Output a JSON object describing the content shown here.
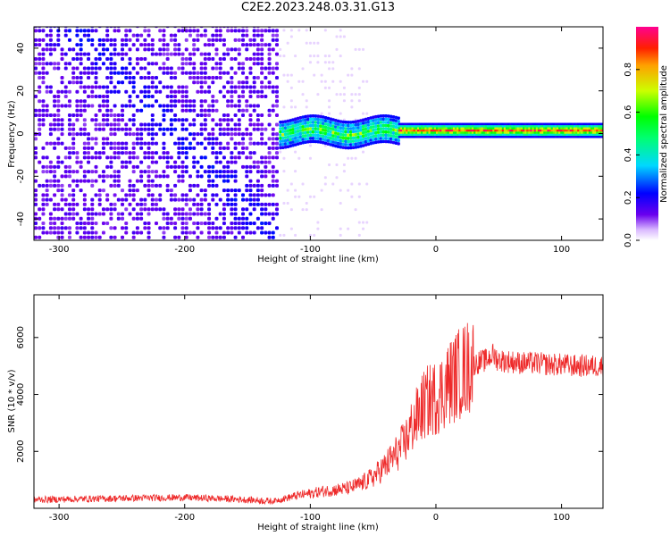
{
  "title": "C2E2.2023.248.03.31.G13",
  "colors": {
    "snr_line": "#ee2a2a",
    "frame": "#000000",
    "spectrogram_low": "#6a00ee"
  },
  "chart_data": [
    {
      "type": "heatmap",
      "title": "",
      "xlabel": "Height of straight line (km)",
      "ylabel": "Frequency (Hz)",
      "xlim": [
        -320,
        133
      ],
      "ylim": [
        -50,
        50
      ],
      "xticks": [
        -300,
        -200,
        -100,
        0,
        100
      ],
      "yticks": [
        -40,
        -20,
        0,
        20,
        40
      ],
      "grid": false,
      "colormap": "rainbow",
      "colorbar": {
        "label": "Normalized spectral amplitude",
        "range": [
          0,
          1
        ],
        "ticks": [
          0.0,
          0.2,
          0.4,
          0.6,
          0.8
        ]
      },
      "bands": [
        {
          "x": [
            -320,
            -125
          ],
          "freq_range": [
            -50,
            50
          ],
          "amplitude": 0.1
        },
        {
          "x": [
            -125,
            -30
          ],
          "freq_center": 0,
          "freq_halfwidth": 6,
          "amplitude": 0.45
        },
        {
          "x": [
            -30,
            133
          ],
          "freq_center": 1,
          "freq_halfwidth": 3,
          "amplitude": 0.8
        }
      ]
    },
    {
      "type": "line",
      "title": "",
      "xlabel": "Height of straight line (km)",
      "ylabel": "SNR (10 * v/v)",
      "xlim": [
        -320,
        133
      ],
      "ylim": [
        0,
        7500
      ],
      "xticks": [
        -300,
        -200,
        -100,
        0,
        100
      ],
      "yticks": [
        2000,
        4000,
        6000
      ],
      "grid": false,
      "series": [
        {
          "x": [
            -320,
            -280,
            -240,
            -200,
            -160,
            -130,
            -120,
            -110,
            -100,
            -90,
            -80,
            -70,
            -60,
            -50,
            -40,
            -30,
            -25,
            -20,
            -15,
            -10,
            -5,
            0,
            5,
            10,
            15,
            20,
            25,
            30,
            35,
            40,
            45,
            50,
            60,
            70,
            80,
            90,
            100,
            110,
            120,
            133
          ],
          "y": [
            300,
            330,
            360,
            380,
            320,
            250,
            350,
            450,
            520,
            600,
            650,
            700,
            850,
            1100,
            1500,
            2000,
            2300,
            2800,
            3200,
            3600,
            3800,
            3900,
            4100,
            4400,
            4600,
            4800,
            4950,
            5050,
            5150,
            5200,
            5400,
            5200,
            5150,
            5100,
            5100,
            5050,
            5050,
            5000,
            5000,
            5000
          ]
        }
      ]
    }
  ]
}
